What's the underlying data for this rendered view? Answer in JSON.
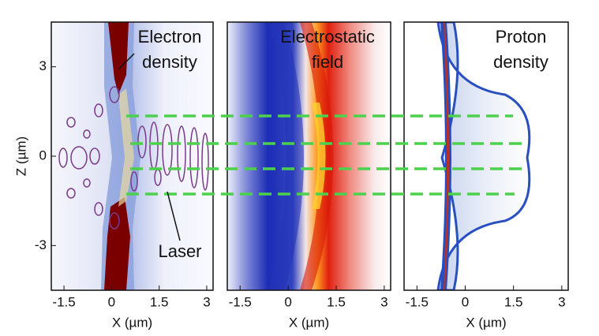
{
  "chart_data": [
    {
      "type": "heatmap",
      "title": [
        "Electron",
        "density"
      ],
      "xlabel": "X (µm)",
      "ylabel": "Z (µm)",
      "xlim": [
        -1.9,
        3.2
      ],
      "ylim": [
        -4.5,
        4.5
      ],
      "xticks": [
        -1.5,
        0,
        1.5,
        3
      ],
      "yticks": [
        3,
        0,
        -3
      ],
      "annotations": [
        "Laser"
      ]
    },
    {
      "type": "heatmap",
      "title": [
        "Electrostatic",
        "field"
      ],
      "xlabel": "X (µm)",
      "xlim": [
        -1.9,
        3.2
      ],
      "ylim": [
        -4.5,
        4.5
      ],
      "xticks": [
        -1.5,
        0,
        1.5,
        3
      ]
    },
    {
      "type": "heatmap",
      "title": [
        "Proton",
        "density"
      ],
      "xlabel": "X (µm)",
      "xlim": [
        -1.9,
        3.2
      ],
      "ylim": [
        -4.5,
        4.5
      ],
      "xticks": [
        -1.5,
        0,
        1.5,
        3
      ]
    }
  ]
}
